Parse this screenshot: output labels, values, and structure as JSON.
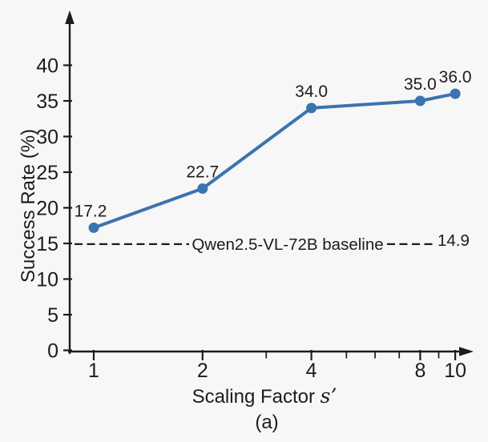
{
  "figure": {
    "caption": "(a)",
    "background": "#f7f7f8"
  },
  "chart_data": {
    "type": "line",
    "title": "",
    "xlabel": "Scaling Factor",
    "xlabel_var": "s’",
    "ylabel": "Success Rate (%)",
    "x_scale": "log2",
    "x": [
      1,
      2,
      4,
      8,
      10
    ],
    "y": [
      17.2,
      22.7,
      34.0,
      35.0,
      36.0
    ],
    "point_labels": [
      "17.2",
      "22.7",
      "34.0",
      "35.0",
      "36.0"
    ],
    "x_ticks_major": [
      1,
      2,
      4,
      8,
      10
    ],
    "x_ticks_minor": [
      3,
      5,
      6,
      7,
      9
    ],
    "y_ticks": [
      0,
      5,
      10,
      15,
      20,
      25,
      30,
      35,
      40
    ],
    "ylim": [
      0,
      45
    ],
    "xlim_log2": [
      1,
      10.6
    ],
    "grid": false,
    "legend": "none",
    "series_color": "#3a74ae",
    "axis_color": "#1c1c1c",
    "baseline": {
      "value": 14.9,
      "label": "Qwen2.5-VL-72B baseline",
      "value_label": "14.9",
      "style": "dashed",
      "color": "#1c1c1c"
    }
  }
}
